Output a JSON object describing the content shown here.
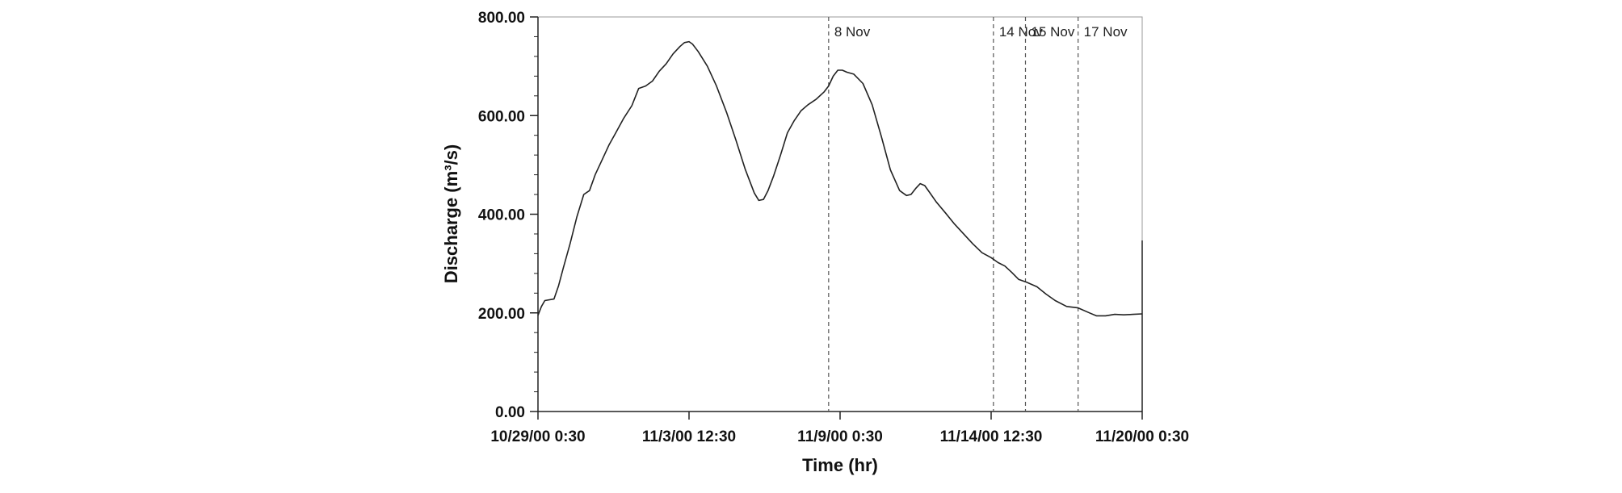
{
  "chart_data": {
    "type": "line",
    "title": "",
    "xlabel": "Time (hr)",
    "ylabel": "Discharge (m³/s)",
    "x_unit": "hr since 10/29/00 0:30",
    "xlim": [
      0,
      528
    ],
    "ylim": [
      0,
      800
    ],
    "grid": false,
    "yticks": [
      {
        "value": 0,
        "label": "0.00"
      },
      {
        "value": 200,
        "label": "200.00"
      },
      {
        "value": 400,
        "label": "400.00"
      },
      {
        "value": 600,
        "label": "600.00"
      },
      {
        "value": 800,
        "label": "800.00"
      }
    ],
    "xticks": [
      {
        "value": 0,
        "label": "10/29/00 0:30"
      },
      {
        "value": 132,
        "label": "11/3/00 12:30"
      },
      {
        "value": 264,
        "label": "11/9/00 0:30"
      },
      {
        "value": 396,
        "label": "11/14/00 12:30"
      },
      {
        "value": 528,
        "label": "11/20/00 0:30"
      }
    ],
    "annotations": [
      {
        "x": 254,
        "label": "8 Nov"
      },
      {
        "x": 398,
        "label": "14 Nov"
      },
      {
        "x": 426,
        "label": "15 Nov"
      },
      {
        "x": 472,
        "label": "17 Nov"
      }
    ],
    "series": [
      {
        "name": "",
        "x": [
          0,
          3,
          6,
          14,
          18,
          22,
          28,
          34,
          40,
          45,
          50,
          56,
          62,
          68,
          75,
          82,
          88,
          94,
          100,
          106,
          112,
          118,
          124,
          128,
          132,
          135,
          140,
          148,
          156,
          165,
          173,
          181,
          189,
          193,
          197,
          201,
          206,
          212,
          218,
          224,
          230,
          236,
          243,
          250,
          254,
          258,
          262,
          266,
          270,
          276,
          284,
          292,
          300,
          308,
          316,
          322,
          326,
          330,
          334,
          338,
          342,
          348,
          356,
          364,
          372,
          380,
          388,
          396,
          402,
          408,
          414,
          420,
          426,
          436,
          444,
          452,
          462,
          472,
          482,
          488,
          496,
          504,
          512,
          520,
          528
        ],
        "y": [
          195,
          213,
          225,
          228,
          255,
          290,
          340,
          395,
          440,
          448,
          480,
          510,
          540,
          565,
          595,
          620,
          655,
          660,
          670,
          690,
          705,
          725,
          740,
          748,
          750,
          745,
          730,
          700,
          660,
          605,
          550,
          492,
          443,
          428,
          430,
          448,
          478,
          520,
          565,
          590,
          610,
          622,
          633,
          648,
          660,
          680,
          692,
          692,
          688,
          684,
          665,
          622,
          558,
          490,
          448,
          438,
          440,
          452,
          462,
          458,
          445,
          425,
          403,
          380,
          360,
          340,
          322,
          312,
          302,
          295,
          282,
          268,
          263,
          253,
          238,
          225,
          213,
          210,
          200,
          194,
          194,
          197,
          196,
          197,
          198
        ]
      }
    ]
  }
}
